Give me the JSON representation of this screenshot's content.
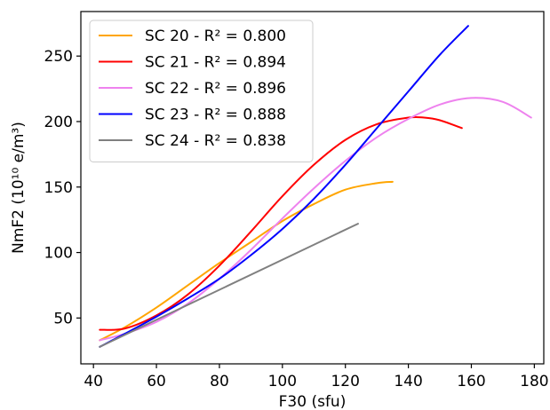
{
  "chart_data": {
    "type": "line",
    "title": "",
    "xlabel": "F30 (sfu)",
    "ylabel": "NmF2 (10¹⁰ e/m³)",
    "xlim": [
      36,
      183
    ],
    "ylim": [
      15,
      284
    ],
    "xticks": [
      40,
      60,
      80,
      100,
      120,
      140,
      160,
      180
    ],
    "yticks": [
      50,
      100,
      150,
      200,
      250
    ],
    "grid": false,
    "legend_position": "top-left",
    "series": [
      {
        "name": "SC 20 - R² = 0.800",
        "color": "#ffa500",
        "x": [
          42,
          50,
          60,
          70,
          80,
          90,
          100,
          110,
          120,
          130,
          135
        ],
        "y": [
          33,
          43,
          58,
          75,
          92,
          108,
          124,
          137,
          148,
          153,
          154
        ]
      },
      {
        "name": "SC 21 - R² = 0.894",
        "color": "#ff0000",
        "x": [
          42,
          50,
          60,
          70,
          80,
          90,
          100,
          110,
          120,
          130,
          140,
          145,
          150,
          157
        ],
        "y": [
          41,
          42,
          52,
          68,
          90,
          116,
          143,
          167,
          186,
          198,
          203,
          203,
          201,
          195
        ]
      },
      {
        "name": "SC 22 - R² = 0.896",
        "color": "#ee82ee",
        "x": [
          42,
          50,
          60,
          70,
          80,
          90,
          100,
          110,
          120,
          130,
          140,
          150,
          160,
          170,
          179
        ],
        "y": [
          33,
          38,
          47,
          61,
          80,
          102,
          126,
          149,
          170,
          188,
          202,
          213,
          218,
          215,
          203
        ]
      },
      {
        "name": "SC 23 - R² = 0.888",
        "color": "#0000ff",
        "x": [
          42,
          50,
          60,
          70,
          80,
          90,
          100,
          110,
          120,
          130,
          140,
          150,
          159
        ],
        "y": [
          28,
          38,
          51,
          65,
          80,
          98,
          118,
          141,
          167,
          195,
          223,
          251,
          273
        ]
      },
      {
        "name": "SC 24 - R² = 0.838",
        "color": "#808080",
        "x": [
          42,
          124
        ],
        "y": [
          28,
          122
        ]
      }
    ]
  }
}
